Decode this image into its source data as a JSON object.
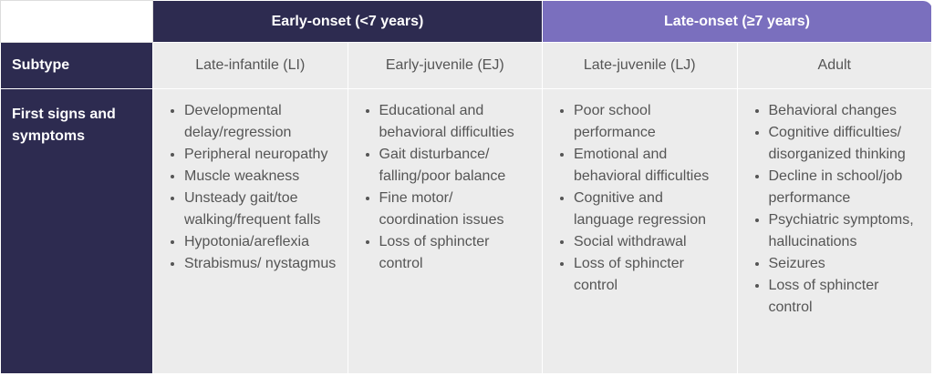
{
  "header": {
    "groups": [
      "Early-onset (<7 years)",
      "Late-onset (≥7 years)"
    ]
  },
  "table": {
    "subtype_label": "Subtype",
    "subtypes": [
      "Late-infantile (LI)",
      "Early-juvenile (EJ)",
      "Late-juvenile (LJ)",
      "Adult"
    ],
    "symptoms_label": "First signs and symptoms",
    "symptoms": [
      [
        "Developmental delay/regression",
        "Peripheral neuropathy",
        "Muscle weakness",
        "Unsteady gait/toe walking/frequent falls",
        "Hypotonia/areflexia",
        "Strabismus/ nystagmus"
      ],
      [
        "Educational and behavioral difficulties",
        "Gait disturbance/ falling/poor balance",
        "Fine motor/ coordination issues",
        "Loss of sphincter control"
      ],
      [
        "Poor school performance",
        "Emotional and behavioral difficulties",
        "Cognitive and language regression",
        "Social withdrawal",
        "Loss of sphincter control"
      ],
      [
        "Behavioral changes",
        "Cognitive difficulties/ disorganized thinking",
        "Decline in school/job performance",
        "Psychiatric symptoms, hallucinations",
        "Seizures",
        "Loss of sphincter control"
      ]
    ]
  }
}
